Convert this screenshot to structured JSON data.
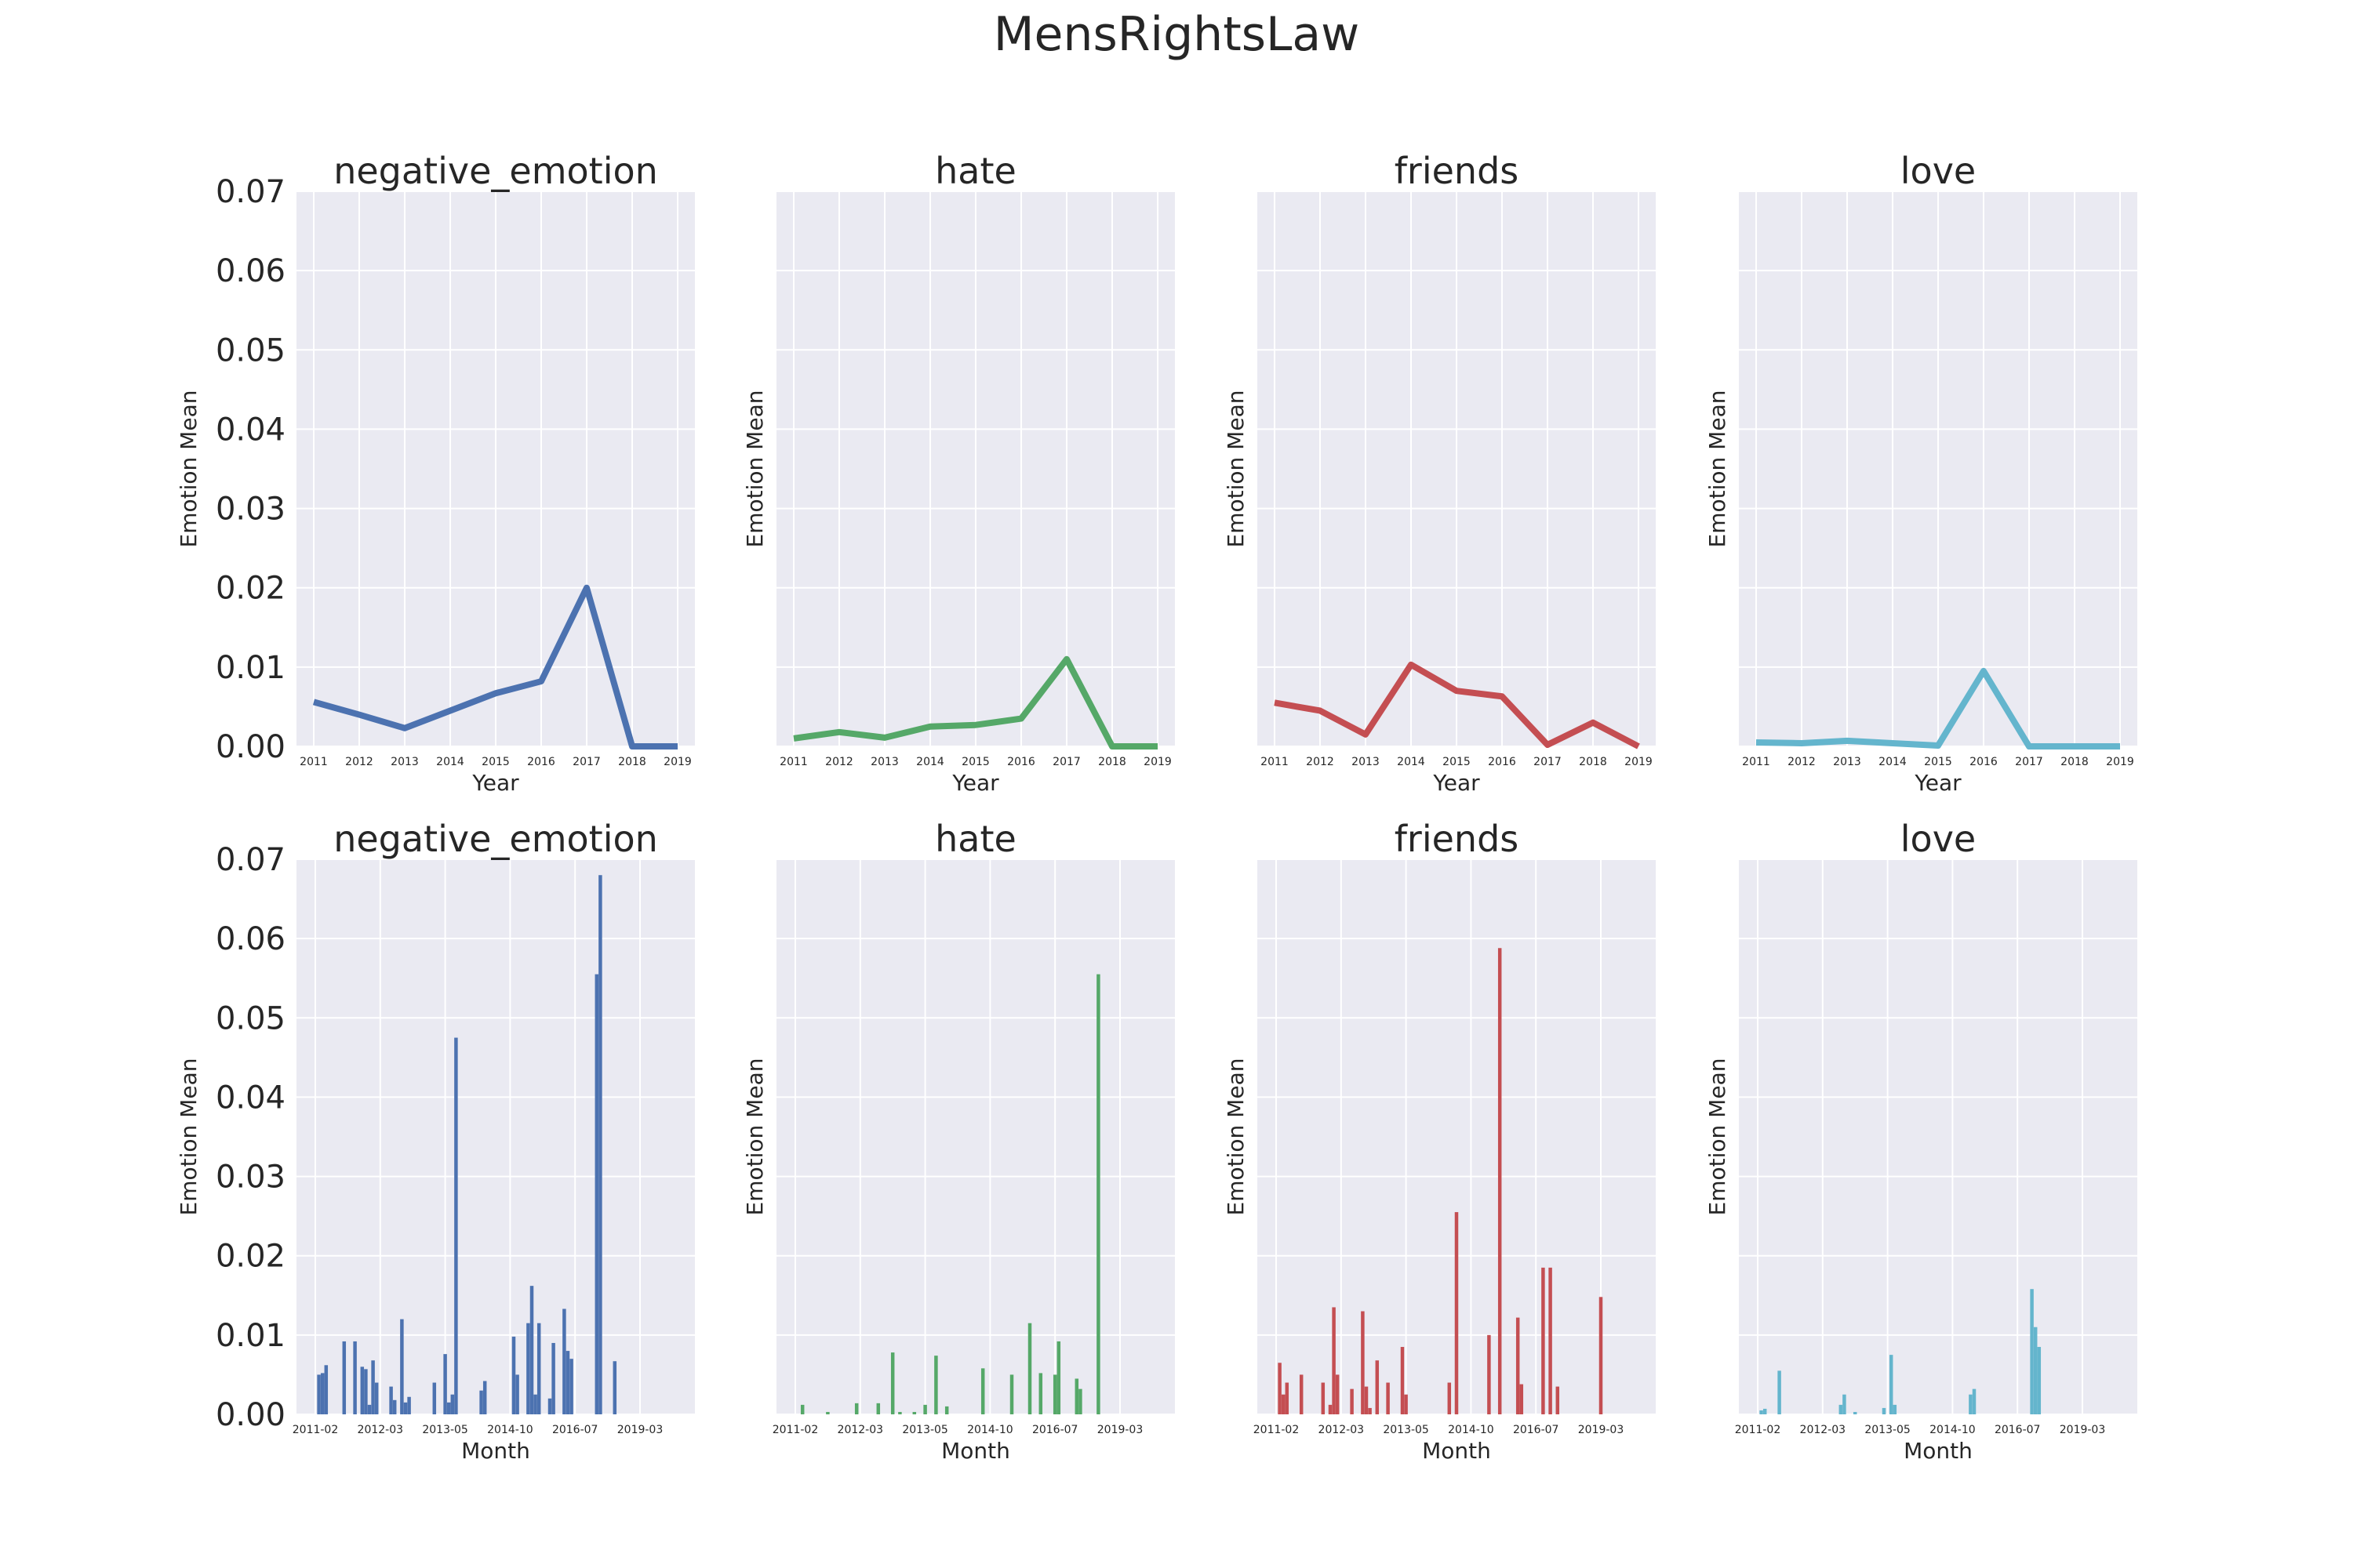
{
  "suptitle": "MensRightsLaw",
  "colors": {
    "negative_emotion": "#4c72b0",
    "hate": "#55a868",
    "friends": "#c44e52",
    "love": "#64b5cd",
    "panel_bg": "#eaeaf2",
    "grid": "#ffffff"
  },
  "chart_data": [
    {
      "type": "line",
      "title": "negative_emotion",
      "xlabel": "Year",
      "ylabel": "Emotion Mean",
      "x": [
        "2011",
        "2012",
        "2013",
        "2014",
        "2015",
        "2016",
        "2017",
        "2018",
        "2019"
      ],
      "values": [
        0.0056,
        0.004,
        0.0023,
        0.0045,
        0.0067,
        0.0082,
        0.02,
        0.0,
        0.0
      ],
      "ylim": [
        0,
        0.07
      ],
      "yticks": [
        "0.00",
        "0.01",
        "0.02",
        "0.03",
        "0.04",
        "0.05",
        "0.06",
        "0.07"
      ],
      "color_key": "negative_emotion",
      "show_ytick_labels": true
    },
    {
      "type": "line",
      "title": "hate",
      "xlabel": "Year",
      "ylabel": "Emotion Mean",
      "x": [
        "2011",
        "2012",
        "2013",
        "2014",
        "2015",
        "2016",
        "2017",
        "2018",
        "2019"
      ],
      "values": [
        0.001,
        0.0018,
        0.0011,
        0.0025,
        0.0027,
        0.0035,
        0.011,
        0.0,
        0.0
      ],
      "ylim": [
        0,
        0.07
      ],
      "yticks": [
        "0.00",
        "0.01",
        "0.02",
        "0.03",
        "0.04",
        "0.05",
        "0.06",
        "0.07"
      ],
      "color_key": "hate",
      "show_ytick_labels": false
    },
    {
      "type": "line",
      "title": "friends",
      "xlabel": "Year",
      "ylabel": "Emotion Mean",
      "x": [
        "2011",
        "2012",
        "2013",
        "2014",
        "2015",
        "2016",
        "2017",
        "2018",
        "2019"
      ],
      "values": [
        0.0055,
        0.0045,
        0.0015,
        0.0103,
        0.007,
        0.0063,
        0.0002,
        0.003,
        0.0
      ],
      "ylim": [
        0,
        0.07
      ],
      "yticks": [
        "0.00",
        "0.01",
        "0.02",
        "0.03",
        "0.04",
        "0.05",
        "0.06",
        "0.07"
      ],
      "color_key": "friends",
      "show_ytick_labels": false
    },
    {
      "type": "line",
      "title": "love",
      "xlabel": "Year",
      "ylabel": "Emotion Mean",
      "x": [
        "2011",
        "2012",
        "2013",
        "2014",
        "2015",
        "2016",
        "2017",
        "2018",
        "2019"
      ],
      "values": [
        0.0005,
        0.0004,
        0.0007,
        0.0004,
        0.0001,
        0.0095,
        0.0,
        0.0,
        0.0
      ],
      "ylim": [
        0,
        0.07
      ],
      "yticks": [
        "0.00",
        "0.01",
        "0.02",
        "0.03",
        "0.04",
        "0.05",
        "0.06",
        "0.07"
      ],
      "color_key": "love",
      "show_ytick_labels": false
    },
    {
      "type": "bar",
      "title": "negative_emotion",
      "xlabel": "Month",
      "ylabel": "Emotion Mean",
      "x_range": [
        0,
        100
      ],
      "xticks": [
        {
          "label": "2011-02",
          "x": 0
        },
        {
          "label": "2012-03",
          "x": 18
        },
        {
          "label": "2013-05",
          "x": 36
        },
        {
          "label": "2014-10",
          "x": 54
        },
        {
          "label": "2016-07",
          "x": 72
        },
        {
          "label": "2019-03",
          "x": 90
        }
      ],
      "bars": [
        [
          1,
          0.005
        ],
        [
          2,
          0.0052
        ],
        [
          3,
          0.0062
        ],
        [
          8,
          0.0092
        ],
        [
          11,
          0.0092
        ],
        [
          13,
          0.006
        ],
        [
          14,
          0.0057
        ],
        [
          15,
          0.0012
        ],
        [
          16,
          0.0068
        ],
        [
          17,
          0.004
        ],
        [
          21,
          0.0035
        ],
        [
          22,
          0.0018
        ],
        [
          24,
          0.012
        ],
        [
          25,
          0.0015
        ],
        [
          26,
          0.0022
        ],
        [
          33,
          0.004
        ],
        [
          36,
          0.0076
        ],
        [
          37,
          0.0015
        ],
        [
          38,
          0.0025
        ],
        [
          39,
          0.0475
        ],
        [
          46,
          0.003
        ],
        [
          47,
          0.0042
        ],
        [
          55,
          0.0098
        ],
        [
          56,
          0.005
        ],
        [
          59,
          0.0115
        ],
        [
          60,
          0.0162
        ],
        [
          61,
          0.0025
        ],
        [
          62,
          0.0115
        ],
        [
          65,
          0.002
        ],
        [
          66,
          0.009
        ],
        [
          69,
          0.0133
        ],
        [
          70,
          0.008
        ],
        [
          71,
          0.007
        ],
        [
          78,
          0.0555
        ],
        [
          79,
          0.068
        ],
        [
          83,
          0.0067
        ]
      ],
      "ylim": [
        0,
        0.07
      ],
      "yticks": [
        "0.00",
        "0.01",
        "0.02",
        "0.03",
        "0.04",
        "0.05",
        "0.06",
        "0.07"
      ],
      "color_key": "negative_emotion",
      "show_ytick_labels": true
    },
    {
      "type": "bar",
      "title": "hate",
      "xlabel": "Month",
      "ylabel": "Emotion Mean",
      "x_range": [
        0,
        100
      ],
      "xticks": [
        {
          "label": "2011-02",
          "x": 0
        },
        {
          "label": "2012-03",
          "x": 18
        },
        {
          "label": "2013-05",
          "x": 36
        },
        {
          "label": "2014-10",
          "x": 54
        },
        {
          "label": "2016-07",
          "x": 72
        },
        {
          "label": "2019-03",
          "x": 90
        }
      ],
      "bars": [
        [
          2,
          0.0012
        ],
        [
          9,
          0.0003
        ],
        [
          17,
          0.0014
        ],
        [
          23,
          0.0014
        ],
        [
          27,
          0.0078
        ],
        [
          29,
          0.0003
        ],
        [
          33,
          0.0003
        ],
        [
          36,
          0.0012
        ],
        [
          39,
          0.0074
        ],
        [
          42,
          0.001
        ],
        [
          52,
          0.0058
        ],
        [
          60,
          0.005
        ],
        [
          65,
          0.0115
        ],
        [
          68,
          0.0052
        ],
        [
          72,
          0.005
        ],
        [
          73,
          0.0092
        ],
        [
          78,
          0.0045
        ],
        [
          79,
          0.0032
        ],
        [
          84,
          0.0555
        ]
      ],
      "ylim": [
        0,
        0.07
      ],
      "yticks": [
        "0.00",
        "0.01",
        "0.02",
        "0.03",
        "0.04",
        "0.05",
        "0.06",
        "0.07"
      ],
      "color_key": "hate",
      "show_ytick_labels": false
    },
    {
      "type": "bar",
      "title": "friends",
      "xlabel": "Month",
      "ylabel": "Emotion Mean",
      "x_range": [
        0,
        100
      ],
      "xticks": [
        {
          "label": "2011-02",
          "x": 0
        },
        {
          "label": "2012-03",
          "x": 18
        },
        {
          "label": "2013-05",
          "x": 36
        },
        {
          "label": "2014-10",
          "x": 54
        },
        {
          "label": "2016-07",
          "x": 72
        },
        {
          "label": "2019-03",
          "x": 90
        }
      ],
      "bars": [
        [
          1,
          0.0065
        ],
        [
          2,
          0.0025
        ],
        [
          3,
          0.004
        ],
        [
          7,
          0.005
        ],
        [
          13,
          0.004
        ],
        [
          15,
          0.0012
        ],
        [
          16,
          0.0135
        ],
        [
          17,
          0.005
        ],
        [
          21,
          0.0032
        ],
        [
          24,
          0.013
        ],
        [
          25,
          0.0035
        ],
        [
          26,
          0.0008
        ],
        [
          28,
          0.0068
        ],
        [
          31,
          0.004
        ],
        [
          35,
          0.0085
        ],
        [
          36,
          0.0025
        ],
        [
          48,
          0.004
        ],
        [
          50,
          0.0255
        ],
        [
          59,
          0.01
        ],
        [
          62,
          0.0588
        ],
        [
          67,
          0.0122
        ],
        [
          68,
          0.0038
        ],
        [
          74,
          0.0185
        ],
        [
          76,
          0.0185
        ],
        [
          78,
          0.0035
        ],
        [
          90,
          0.0148
        ]
      ],
      "ylim": [
        0,
        0.07
      ],
      "yticks": [
        "0.00",
        "0.01",
        "0.02",
        "0.03",
        "0.04",
        "0.05",
        "0.06",
        "0.07"
      ],
      "color_key": "friends",
      "show_ytick_labels": false
    },
    {
      "type": "bar",
      "title": "love",
      "xlabel": "Month",
      "ylabel": "Emotion Mean",
      "x_range": [
        0,
        100
      ],
      "xticks": [
        {
          "label": "2011-02",
          "x": 0
        },
        {
          "label": "2012-03",
          "x": 18
        },
        {
          "label": "2013-05",
          "x": 36
        },
        {
          "label": "2014-10",
          "x": 54
        },
        {
          "label": "2016-07",
          "x": 72
        },
        {
          "label": "2019-03",
          "x": 90
        }
      ],
      "bars": [
        [
          1,
          0.0005
        ],
        [
          2,
          0.0007
        ],
        [
          6,
          0.0055
        ],
        [
          23,
          0.0012
        ],
        [
          24,
          0.0025
        ],
        [
          27,
          0.0003
        ],
        [
          35,
          0.0008
        ],
        [
          37,
          0.0075
        ],
        [
          38,
          0.0012
        ],
        [
          59,
          0.0025
        ],
        [
          60,
          0.0032
        ],
        [
          76,
          0.0158
        ],
        [
          77,
          0.011
        ],
        [
          78,
          0.0085
        ]
      ],
      "ylim": [
        0,
        0.07
      ],
      "yticks": [
        "0.00",
        "0.01",
        "0.02",
        "0.03",
        "0.04",
        "0.05",
        "0.06",
        "0.07"
      ],
      "color_key": "love",
      "show_ytick_labels": false
    }
  ]
}
